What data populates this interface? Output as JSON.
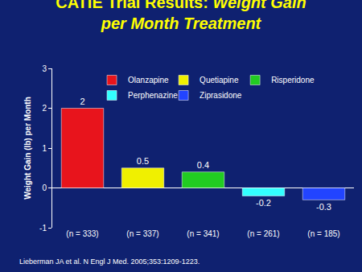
{
  "chart_data": {
    "type": "bar",
    "title": "CATIE Trial Results: Weight Gain per Month Treatment",
    "y_label": "Weight Gain (lb) per Month",
    "categories": [
      "(n = 333)",
      "(n = 337)",
      "(n = 341)",
      "(n = 261)",
      "(n = 185)"
    ],
    "series": [
      {
        "name": "Olanzapine",
        "color": "#e8141c",
        "values": [
          2,
          null,
          null,
          null,
          null
        ]
      },
      {
        "name": "Quetiapine",
        "color": "#f0f000",
        "values": [
          null,
          0.5,
          null,
          null,
          null
        ]
      },
      {
        "name": "Risperidone",
        "color": "#22cc22",
        "values": [
          null,
          null,
          0.4,
          null,
          null
        ]
      },
      {
        "name": "Perphenazine",
        "color": "#33ffff",
        "values": [
          null,
          null,
          null,
          -0.2,
          null
        ]
      },
      {
        "name": "Ziprasidone",
        "color": "#2244ff",
        "values": [
          null,
          null,
          null,
          null,
          -0.3
        ]
      }
    ],
    "ylim": [
      -1,
      3
    ],
    "yticks": [
      -1,
      0,
      1,
      2,
      3
    ],
    "grid": false,
    "legend": "top",
    "data_labels": true,
    "annotations": [
      "Lieberman JA et al. N Engl J Med. 2005;353:1209-1223."
    ]
  }
}
